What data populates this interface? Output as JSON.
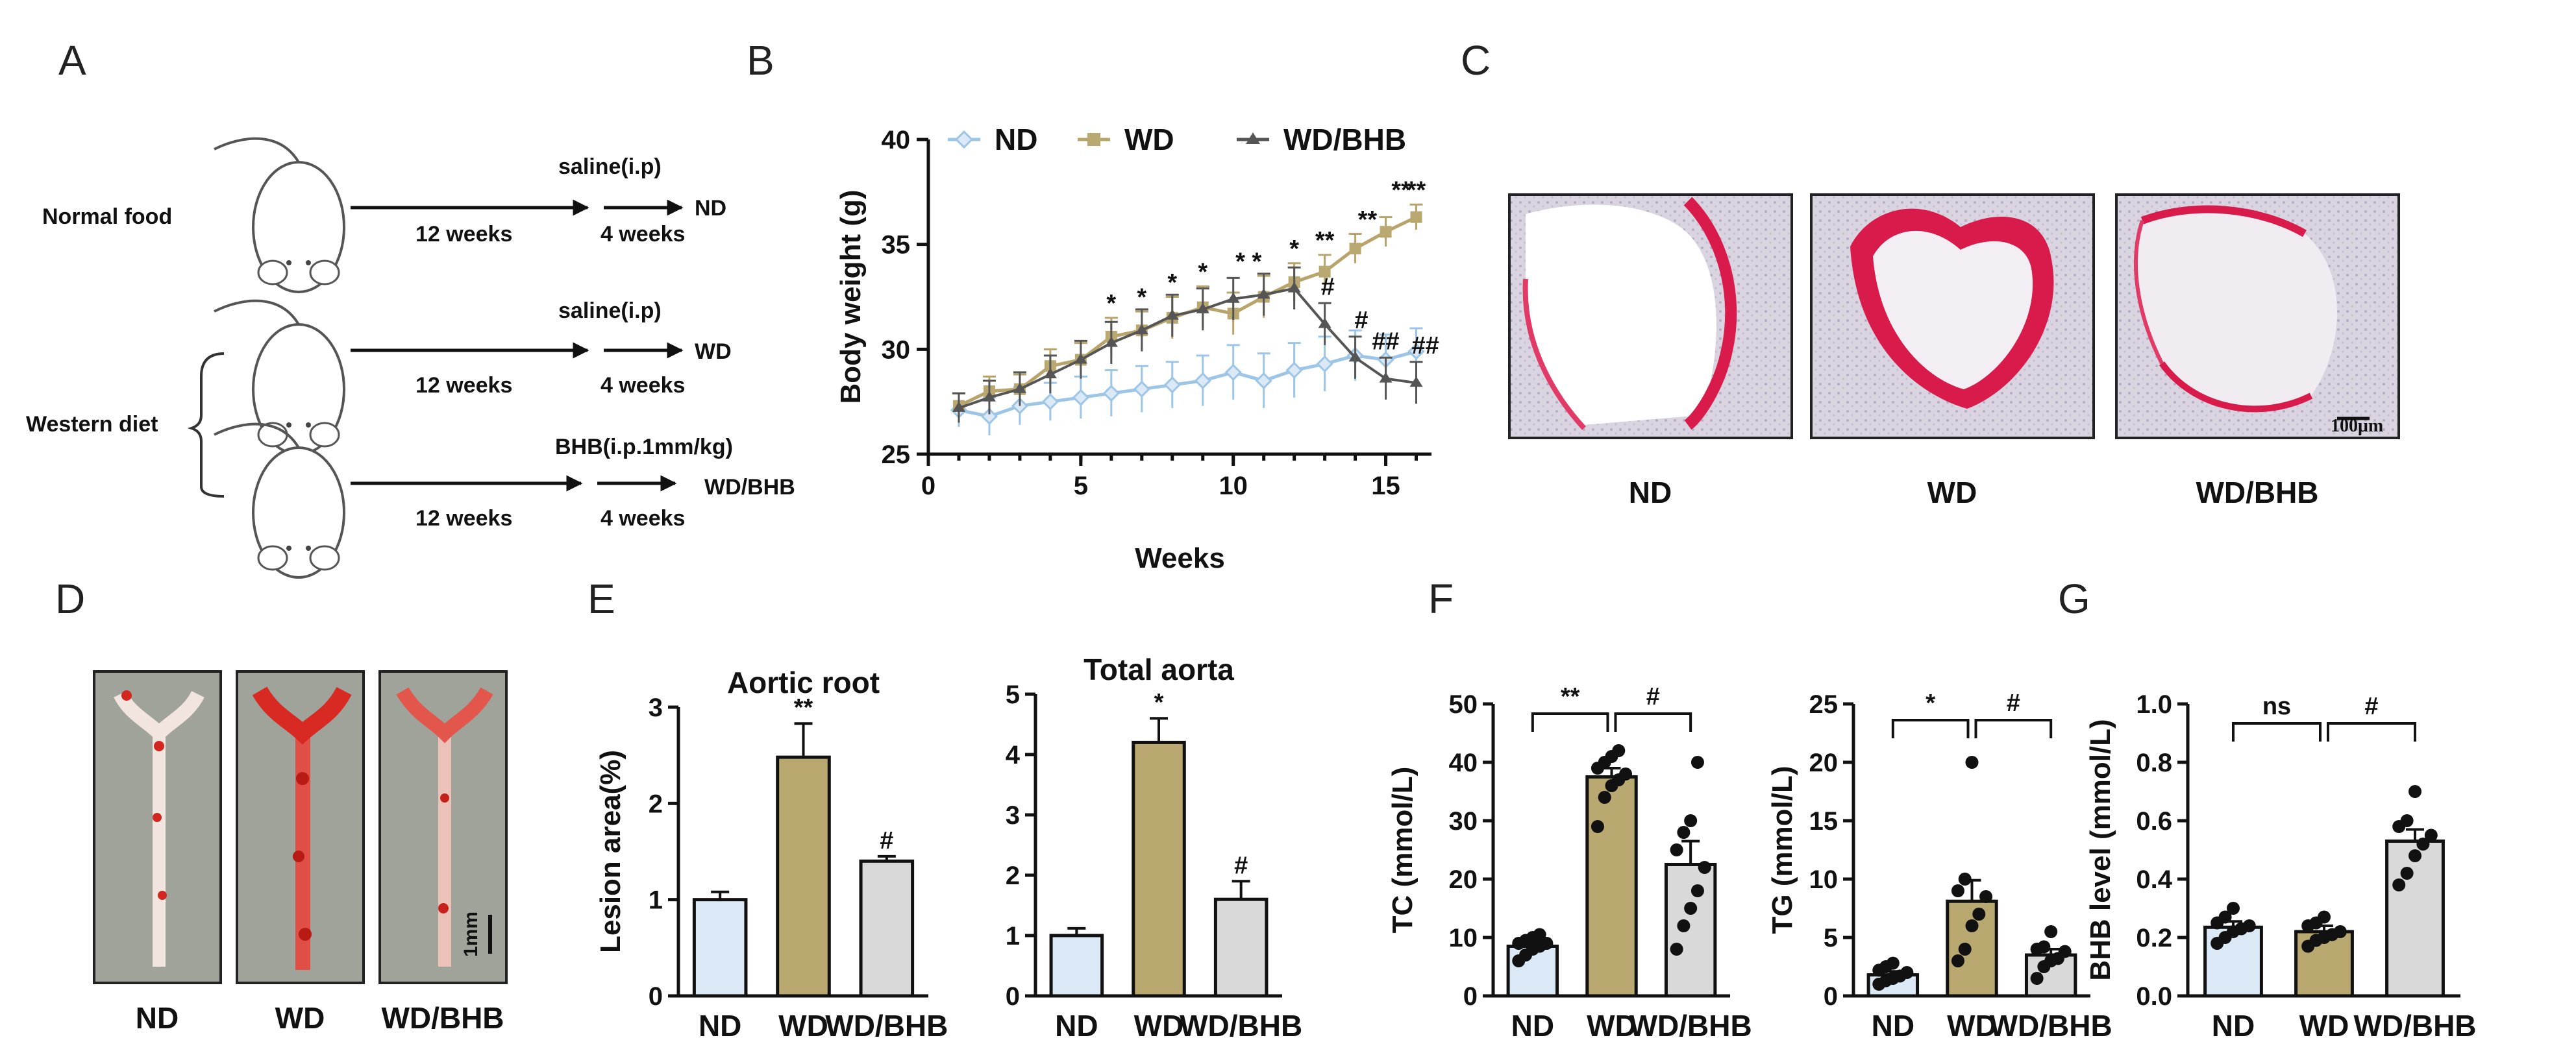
{
  "panels": {
    "A": "A",
    "B": "B",
    "C": "C",
    "D": "D",
    "E": "E",
    "F": "F",
    "G": "G"
  },
  "schematic": {
    "normal_food": "Normal food",
    "western_diet": "Western diet",
    "row1": {
      "period1": "12 weeks",
      "period2": "4 weeks",
      "treatment": "saline(i.p)",
      "group": "ND"
    },
    "row2": {
      "period1": "12 weeks",
      "period2": "4 weeks",
      "treatment": "saline(i.p)",
      "group": "WD"
    },
    "row3": {
      "period1": "12 weeks",
      "period2": "4 weeks",
      "treatment": "BHB(i.p.1mm/kg)",
      "group": "WD/BHB"
    }
  },
  "panel_c": {
    "labels": [
      "ND",
      "WD",
      "WD/BHB"
    ],
    "scale": "100μm"
  },
  "panel_d": {
    "labels": [
      "ND",
      "WD",
      "WD/BHB"
    ],
    "scale": "1mm"
  },
  "colors": {
    "nd": "#dbe9f7",
    "wd": "#b9a870",
    "bhb": "#d9d9d9",
    "nd_line": "#9cc5e8",
    "wd_line": "#b8a46a",
    "bhb_line": "#555555"
  },
  "chart_data": [
    {
      "panel": "B",
      "type": "line",
      "xlabel": "Weeks",
      "ylabel": "Body weight  (g)",
      "xlim": [
        0,
        16.5
      ],
      "ylim": [
        25,
        40
      ],
      "xticks": [
        0,
        5,
        10,
        15
      ],
      "yticks": [
        25,
        30,
        35,
        40
      ],
      "legend": [
        "ND",
        "WD",
        "WD/BHB"
      ],
      "x": [
        1,
        2,
        3,
        4,
        5,
        6,
        7,
        8,
        9,
        10,
        11,
        12,
        13,
        14,
        15,
        16
      ],
      "series": [
        {
          "name": "ND",
          "values": [
            27.1,
            26.8,
            27.3,
            27.5,
            27.7,
            27.9,
            28.1,
            28.3,
            28.5,
            28.9,
            28.5,
            29.0,
            29.3,
            29.7,
            29.5,
            29.9
          ],
          "errors": [
            0.8,
            0.9,
            0.9,
            0.9,
            1.0,
            1.1,
            1.1,
            1.1,
            1.2,
            1.3,
            1.3,
            1.3,
            1.3,
            1.2,
            1.2,
            1.1
          ]
        },
        {
          "name": "WD",
          "values": [
            27.3,
            28.0,
            28.1,
            29.2,
            29.5,
            30.6,
            30.9,
            31.5,
            32.0,
            31.7,
            32.5,
            33.2,
            33.7,
            34.8,
            35.6,
            36.3
          ],
          "errors": [
            0.6,
            0.7,
            0.7,
            0.8,
            0.8,
            0.9,
            0.9,
            1.0,
            1.0,
            1.0,
            1.0,
            0.9,
            0.8,
            0.7,
            0.7,
            0.6
          ]
        },
        {
          "name": "WD/BHB",
          "values": [
            27.2,
            27.7,
            28.1,
            28.8,
            29.5,
            30.3,
            30.9,
            31.6,
            31.9,
            32.4,
            32.6,
            32.9,
            31.2,
            29.6,
            28.6,
            28.4
          ],
          "errors": [
            0.7,
            0.8,
            0.8,
            0.9,
            0.9,
            1.0,
            1.0,
            1.0,
            1.0,
            1.0,
            1.0,
            1.0,
            1.0,
            1.0,
            1.0,
            1.0
          ]
        }
      ],
      "annotations": [
        {
          "x": 6,
          "text": "*"
        },
        {
          "x": 7,
          "text": "*"
        },
        {
          "x": 8,
          "text": "*"
        },
        {
          "x": 9,
          "text": "*"
        },
        {
          "x": 10.5,
          "text": "* *"
        },
        {
          "x": 12,
          "text": "*"
        },
        {
          "x": 13,
          "text": "**"
        },
        {
          "x": 14.4,
          "text": "**"
        },
        {
          "x": 15.5,
          "text": "**"
        },
        {
          "x": 16,
          "text": "**"
        },
        {
          "x": 13.1,
          "text": "#"
        },
        {
          "x": 14.2,
          "text": "#"
        },
        {
          "x": 15,
          "text": "##"
        },
        {
          "x": 16.3,
          "text": "##"
        }
      ]
    },
    {
      "panel": "E1",
      "type": "bar",
      "title": "Aortic root",
      "ylabel": "Lesion area(%)",
      "categories": [
        "ND",
        "WD",
        "WD/BHB"
      ],
      "values": [
        1.0,
        2.48,
        1.4
      ],
      "errors": [
        0.08,
        0.35,
        0.05
      ],
      "ylim": [
        0,
        3
      ],
      "yticks": [
        0,
        1,
        2,
        3
      ],
      "labels": [
        "",
        "**",
        "#"
      ]
    },
    {
      "panel": "E2",
      "type": "bar",
      "title": "Total aorta",
      "ylabel": "",
      "categories": [
        "ND",
        "WD",
        "WD/BHB"
      ],
      "values": [
        1.0,
        4.2,
        1.6
      ],
      "errors": [
        0.12,
        0.4,
        0.3
      ],
      "ylim": [
        0,
        5
      ],
      "yticks": [
        0,
        1,
        2,
        3,
        4,
        5
      ],
      "labels": [
        "",
        "*",
        "#"
      ]
    },
    {
      "panel": "F1",
      "type": "bar",
      "ylabel": "TC (mmol/L)",
      "categories": [
        "ND",
        "WD",
        "WD/BHB"
      ],
      "values": [
        8.5,
        37.5,
        22.5
      ],
      "errors": [
        0.8,
        1.5,
        4.0
      ],
      "ylim": [
        0,
        50
      ],
      "yticks": [
        0,
        10,
        20,
        30,
        40,
        50
      ],
      "points": [
        [
          6,
          7,
          8,
          8.5,
          9,
          9,
          9.5,
          10,
          10.5
        ],
        [
          29,
          34,
          36,
          37,
          38,
          39,
          40,
          41,
          42
        ],
        [
          8,
          12,
          15,
          18,
          22,
          25,
          28,
          30,
          40
        ]
      ],
      "comparisons": [
        {
          "from": 0,
          "to": 1,
          "label": "**"
        },
        {
          "from": 1,
          "to": 2,
          "label": "#"
        }
      ]
    },
    {
      "panel": "F2",
      "type": "bar",
      "ylabel": "TG (mmol/L)",
      "categories": [
        "ND",
        "WD",
        "WD/BHB"
      ],
      "values": [
        1.8,
        8.1,
        3.5
      ],
      "errors": [
        0.3,
        1.8,
        0.5
      ],
      "ylim": [
        0,
        25
      ],
      "yticks": [
        0,
        5,
        10,
        15,
        20,
        25
      ],
      "points": [
        [
          1,
          1.3,
          1.5,
          1.7,
          2.0,
          2.2,
          2.5,
          2.8
        ],
        [
          3,
          4,
          6,
          7,
          8.5,
          9,
          10,
          20
        ],
        [
          1.5,
          2.5,
          3,
          3.2,
          3.8,
          4,
          4.2,
          5.5
        ]
      ],
      "comparisons": [
        {
          "from": 0,
          "to": 1,
          "label": "*"
        },
        {
          "from": 1,
          "to": 2,
          "label": "#"
        }
      ]
    },
    {
      "panel": "G",
      "type": "bar",
      "ylabel": "BHB  level  (mmol/L)",
      "categories": [
        "ND",
        "WD",
        "WD/BHB"
      ],
      "values": [
        0.235,
        0.22,
        0.53
      ],
      "errors": [
        0.02,
        0.02,
        0.04
      ],
      "ylim": [
        0,
        1.0
      ],
      "yticks": [
        0.0,
        0.2,
        0.4,
        0.6,
        0.8,
        1.0
      ],
      "points": [
        [
          0.18,
          0.2,
          0.22,
          0.23,
          0.24,
          0.25,
          0.27,
          0.3
        ],
        [
          0.17,
          0.19,
          0.2,
          0.21,
          0.22,
          0.24,
          0.25,
          0.27
        ],
        [
          0.38,
          0.42,
          0.48,
          0.52,
          0.55,
          0.58,
          0.6,
          0.7
        ]
      ],
      "comparisons": [
        {
          "from": 0,
          "to": 1,
          "label": "ns"
        },
        {
          "from": 1,
          "to": 2,
          "label": "#"
        }
      ]
    }
  ]
}
